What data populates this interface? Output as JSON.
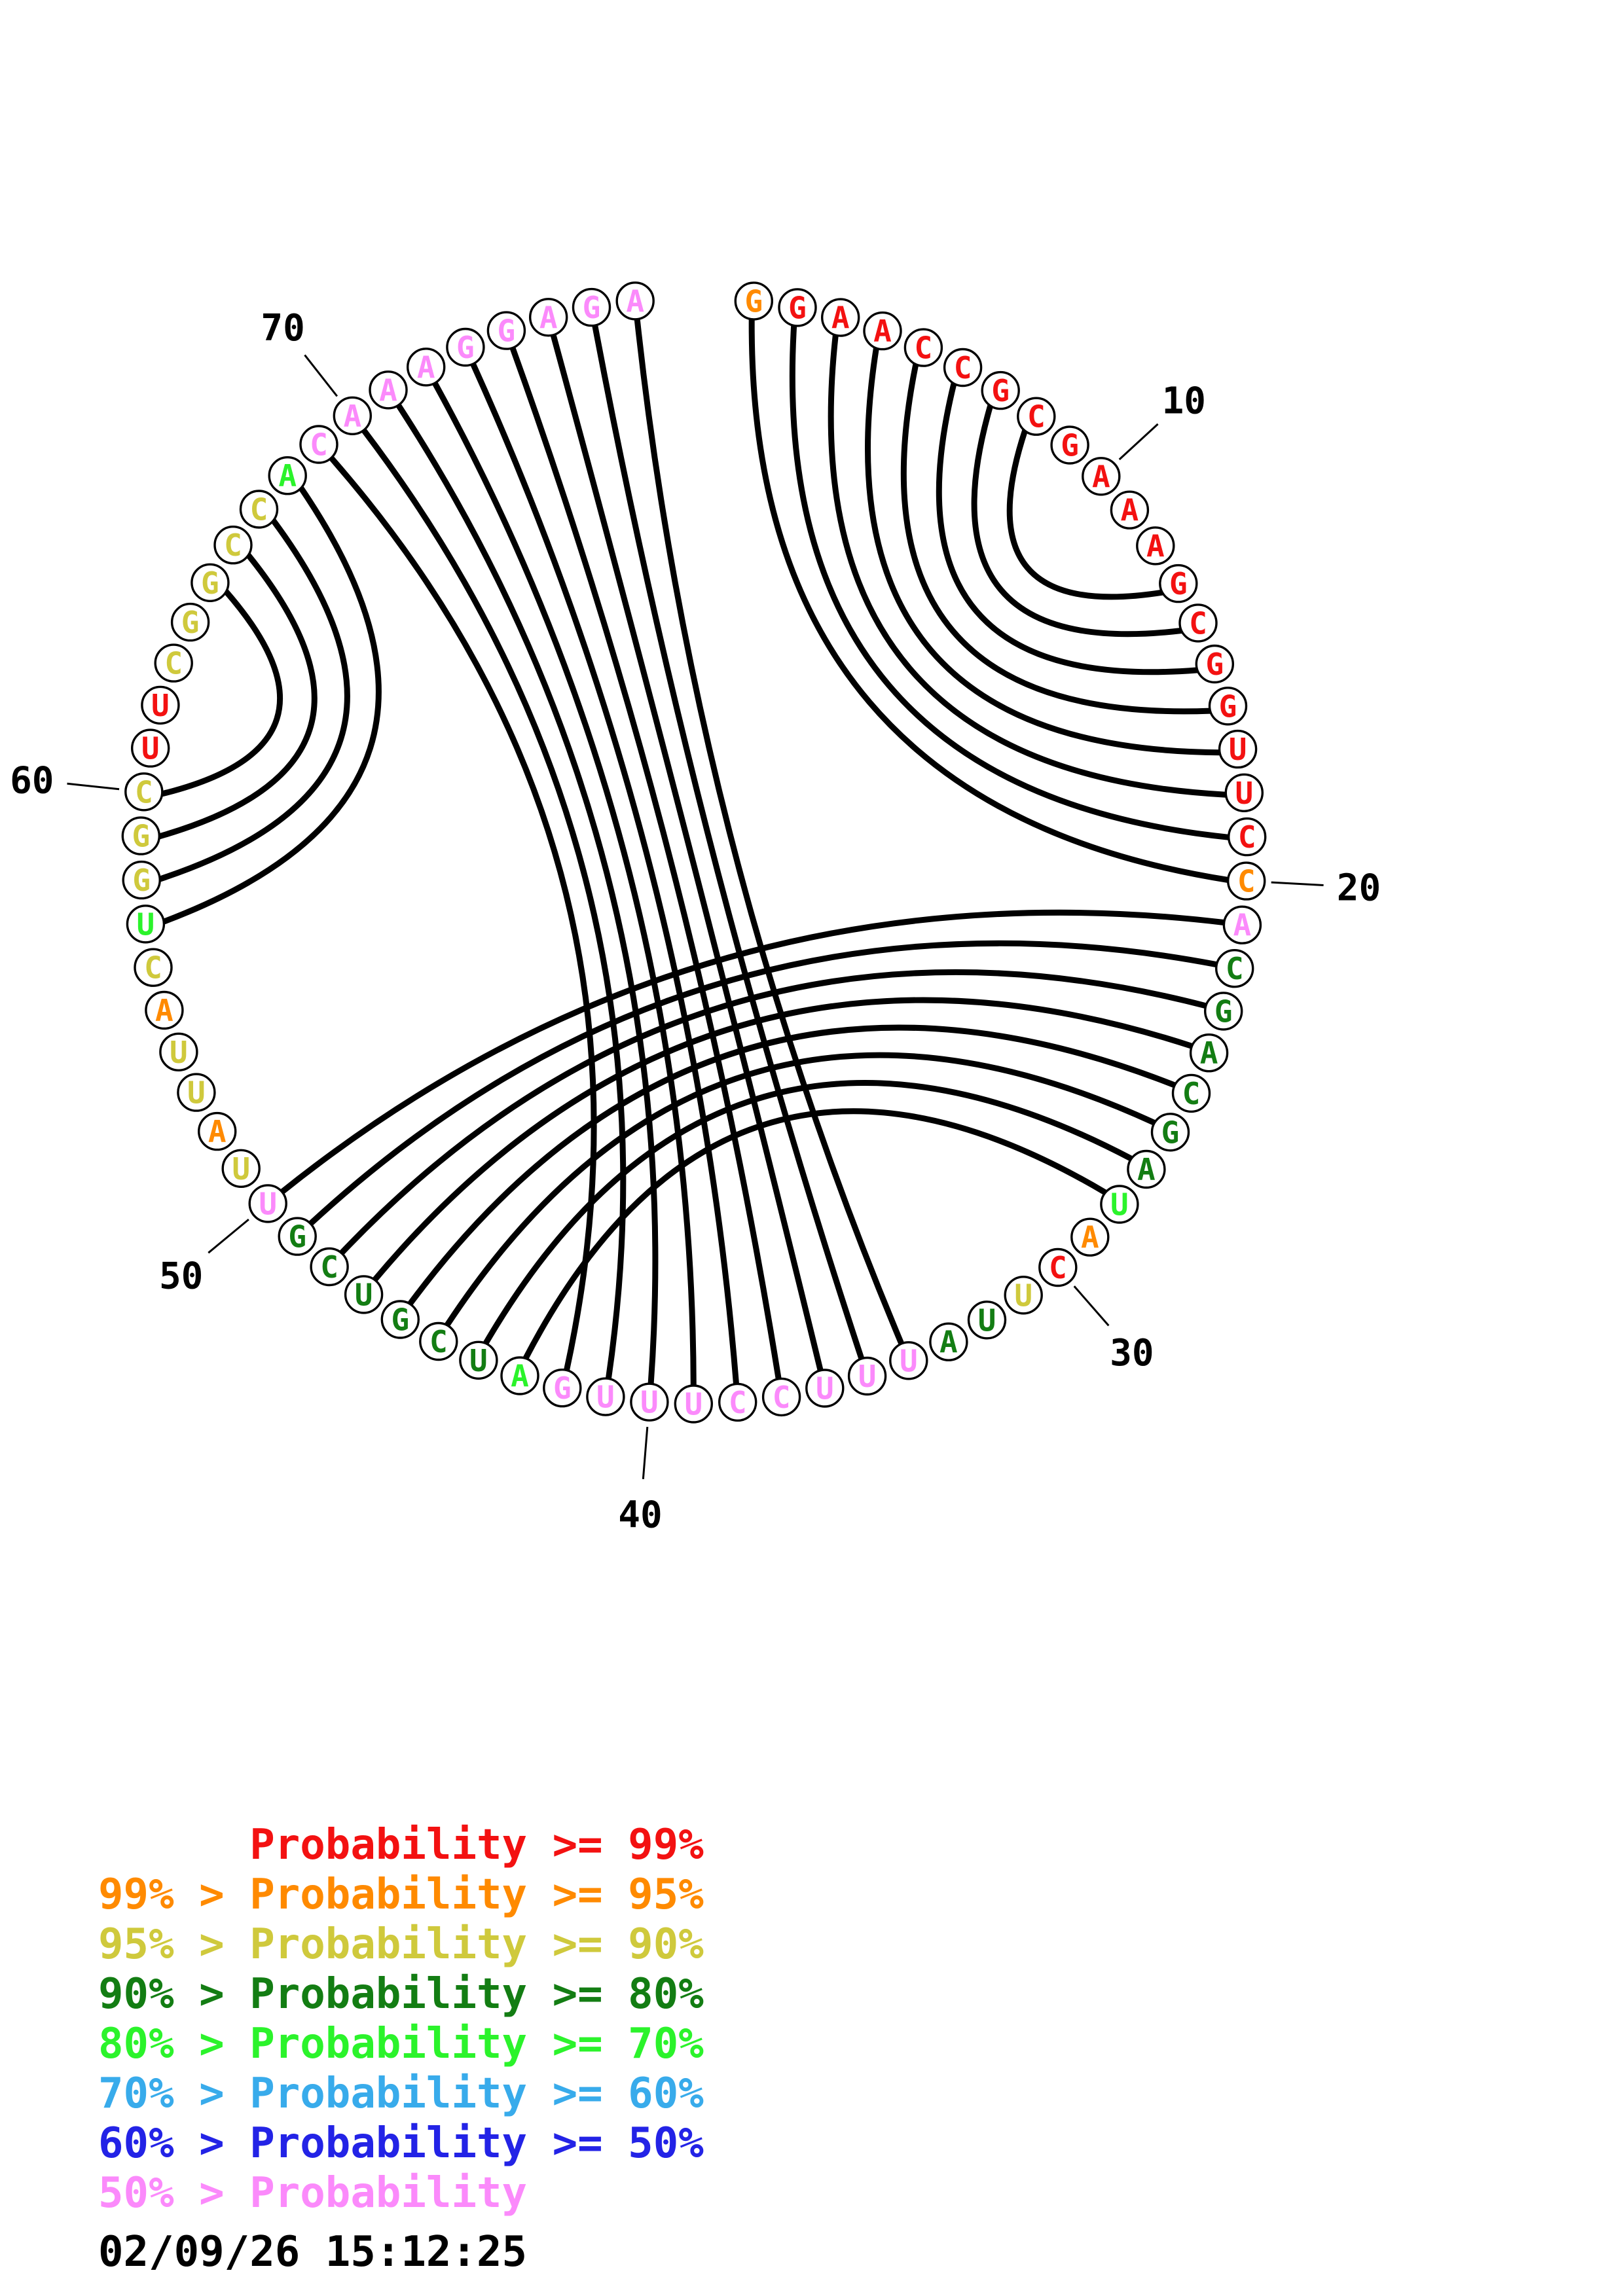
{
  "plot": {
    "title": "RNA secondary structure circle plot with base-pair probability coloring",
    "sequence": "GGAACCGCGAAAGCGGUUCCACGACGAUACUUAUUUCCUUUGAUCGUCGUUAUUACUGGCUUCGGCCACAAAGGAGA",
    "color_classes": "orrrrrrrrrrrrrrrrrrovddddddboryddvvvvvvvvvbddddddvyoyyoybyyyrryyyyybvvvvvvvvv",
    "pairs": [
      [
        1,
        20
      ],
      [
        2,
        19
      ],
      [
        3,
        18
      ],
      [
        4,
        17
      ],
      [
        5,
        16
      ],
      [
        6,
        15
      ],
      [
        7,
        14
      ],
      [
        8,
        13
      ],
      [
        21,
        50
      ],
      [
        22,
        49
      ],
      [
        23,
        48
      ],
      [
        24,
        47
      ],
      [
        25,
        46
      ],
      [
        26,
        45
      ],
      [
        27,
        44
      ],
      [
        28,
        43
      ],
      [
        34,
        77
      ],
      [
        35,
        76
      ],
      [
        36,
        75
      ],
      [
        37,
        74
      ],
      [
        38,
        73
      ],
      [
        39,
        72
      ],
      [
        40,
        71
      ],
      [
        41,
        70
      ],
      [
        42,
        69
      ],
      [
        57,
        68
      ],
      [
        58,
        67
      ],
      [
        59,
        66
      ],
      [
        60,
        65
      ]
    ],
    "position_labels": [
      10,
      20,
      30,
      40,
      50,
      60,
      70
    ]
  },
  "palette": {
    "r": "#f31111",
    "o": "#ff8a00",
    "y": "#cfc93c",
    "d": "#137d13",
    "b": "#2bf32b",
    "lb": "#38abeb",
    "bl": "#2323e6",
    "v": "#fb8afb",
    "black": "#000000",
    "background": "#ffffff"
  },
  "legend": {
    "rows": [
      {
        "text": "      Probability >= 99%",
        "color": "r"
      },
      {
        "text": "99% > Probability >= 95%",
        "color": "o"
      },
      {
        "text": "95% > Probability >= 90%",
        "color": "y"
      },
      {
        "text": "90% > Probability >= 80%",
        "color": "d"
      },
      {
        "text": "80% > Probability >= 70%",
        "color": "b"
      },
      {
        "text": "70% > Probability >= 60%",
        "color": "lb"
      },
      {
        "text": "60% > Probability >= 50%",
        "color": "bl"
      },
      {
        "text": "50% > Probability",
        "color": "v"
      }
    ]
  },
  "footer": {
    "timestamp": "02/09/26 15:12:25"
  }
}
